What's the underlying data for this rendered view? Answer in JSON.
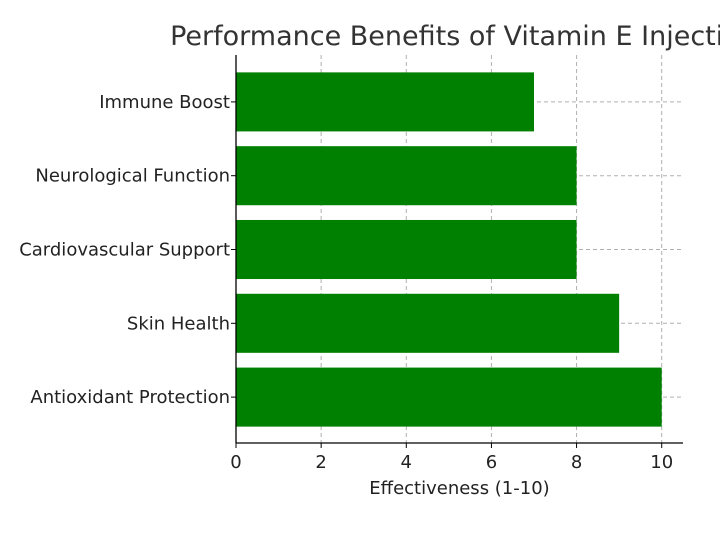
{
  "chart_data": {
    "type": "bar",
    "orientation": "horizontal",
    "title": "Performance Benefits of Vitamin E Injection",
    "xlabel": "Effectiveness (1-10)",
    "ylabel": "",
    "categories": [
      "Antioxidant Protection",
      "Skin Health",
      "Cardiovascular Support",
      "Neurological Function",
      "Immune Boost"
    ],
    "values": [
      10,
      9,
      8,
      8,
      7
    ],
    "xlim": [
      0,
      10.5
    ],
    "xticks": [
      0,
      2,
      4,
      6,
      8,
      10
    ],
    "grid": true,
    "bar_color": "#008000"
  }
}
